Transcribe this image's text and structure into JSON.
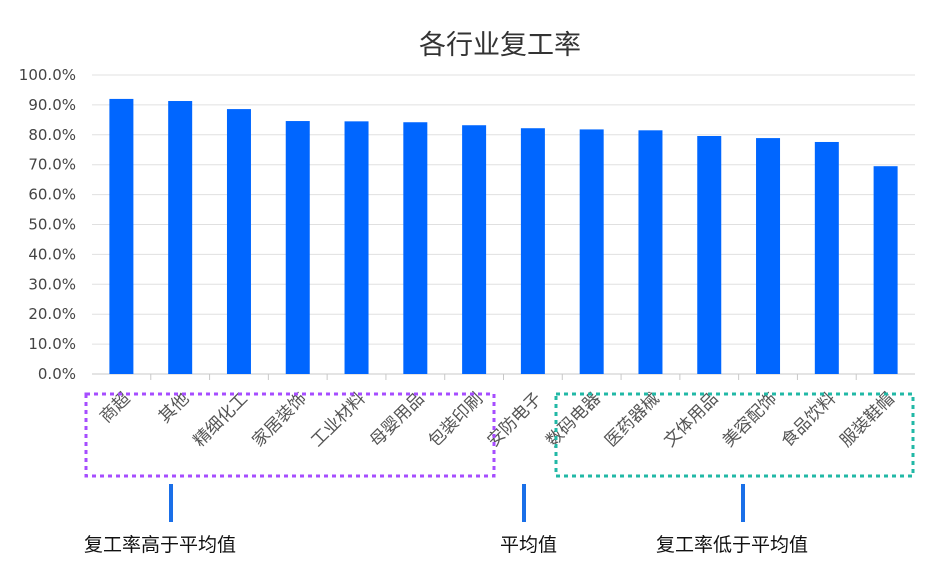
{
  "chart_data": {
    "type": "bar",
    "title": "各行业复工率",
    "categories": [
      "商超",
      "其他",
      "精细化工",
      "家居装饰",
      "工业材料",
      "母婴用品",
      "包装印刷",
      "安防电子",
      "数码电器",
      "医药器械",
      "文体用品",
      "美容配饰",
      "食品饮料",
      "服装鞋帽"
    ],
    "values": [
      0.92,
      0.913,
      0.886,
      0.846,
      0.845,
      0.842,
      0.832,
      0.822,
      0.818,
      0.815,
      0.796,
      0.789,
      0.776,
      0.695
    ],
    "ylim": [
      0,
      1
    ],
    "yticks": [
      "0.0%",
      "10.0%",
      "20.0%",
      "30.0%",
      "40.0%",
      "50.0%",
      "60.0%",
      "70.0%",
      "80.0%",
      "90.0%",
      "100.0%"
    ],
    "xlabel": "",
    "ylabel": "",
    "grid": true,
    "bar_color": "#0066FF",
    "annotations": {
      "above_label": "复工率高于平均值",
      "average_label": "平均值",
      "below_label": "复工率低于平均值",
      "above_box_color": "#A64DFF",
      "below_box_color": "#22B8A6",
      "marker_color": "#1A6FE8"
    }
  }
}
